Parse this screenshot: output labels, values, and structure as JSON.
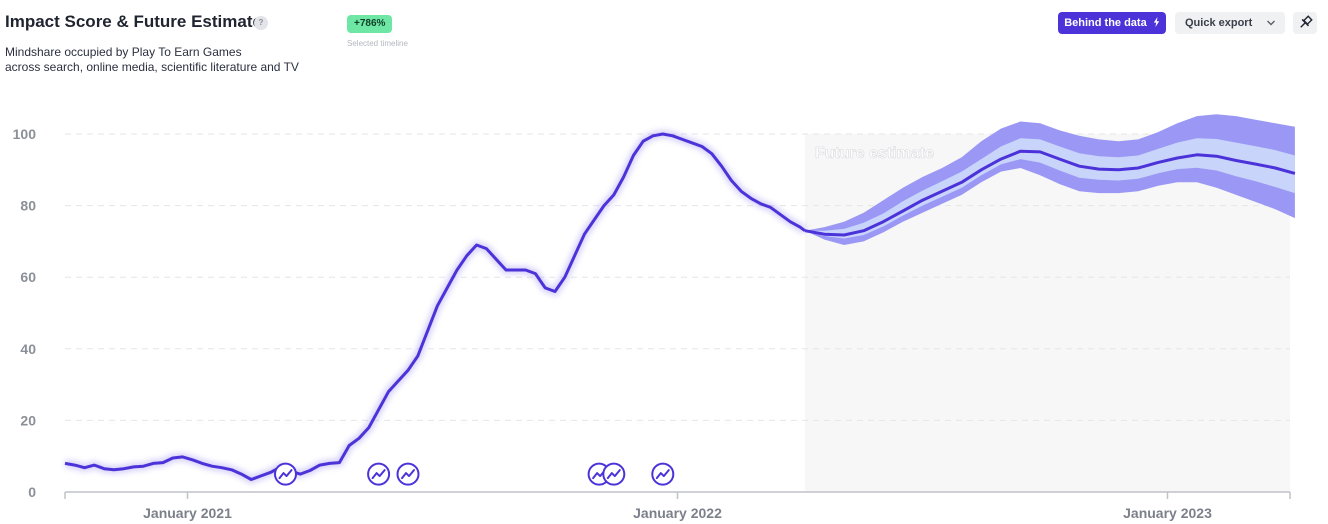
{
  "header": {
    "title": "Impact Score & Future Estimate",
    "help_glyph": "?",
    "subtitle_line1": "Mindshare occupied by Play To Earn Games",
    "subtitle_line2": "across search, online media, scientific literature and TV",
    "change_badge": "+786%",
    "change_caption": "Selected timeline"
  },
  "toolbar": {
    "behind_label": "Behind the data",
    "behind_icon": "bolt-icon",
    "export_label": "Quick export",
    "export_icon": "chevron-down-icon",
    "pin_icon": "pin-icon"
  },
  "colors": {
    "line": "#4b33d9",
    "band_outer": "#9b98f5",
    "band_inner": "#c9d4fb",
    "forecast_bg": "#f7f7f7",
    "grid": "#e6e6e6",
    "badge": "#6ee7a5"
  },
  "chart_data": {
    "type": "line",
    "ylim": [
      0,
      100
    ],
    "yticks": [
      "0",
      "20",
      "40",
      "60",
      "80",
      "100"
    ],
    "x_range": [
      2020.75,
      2023.25
    ],
    "xticks": [
      {
        "label": "January 2021",
        "x": 2021.0
      },
      {
        "label": "January 2022",
        "x": 2022.0
      },
      {
        "label": "January 2023",
        "x": 2023.0
      }
    ],
    "grid": true,
    "forecast_label": "Future estimate",
    "forecast_start": 2022.26,
    "series": [
      {
        "x": [
          2020.75,
          2020.77,
          2020.79,
          2020.81,
          2020.83,
          2020.85,
          2020.87,
          2020.89,
          2020.91,
          2020.93,
          2020.95,
          2020.97,
          2020.99,
          2021.01,
          2021.03,
          2021.05,
          2021.07,
          2021.09,
          2021.11,
          2021.13,
          2021.15,
          2021.17,
          2021.19,
          2021.21,
          2021.23,
          2021.25,
          2021.27,
          2021.29,
          2021.31,
          2021.33,
          2021.35,
          2021.37,
          2021.39,
          2021.41,
          2021.43,
          2021.45,
          2021.47,
          2021.49,
          2021.51,
          2021.53,
          2021.55,
          2021.57,
          2021.59,
          2021.61,
          2021.63,
          2021.65,
          2021.67,
          2021.69,
          2021.71,
          2021.73,
          2021.75,
          2021.77,
          2021.79,
          2021.81,
          2021.83,
          2021.85,
          2021.87,
          2021.89,
          2021.91,
          2021.93,
          2021.95,
          2021.97,
          2021.99,
          2022.01,
          2022.03,
          2022.05,
          2022.07,
          2022.09,
          2022.11,
          2022.13,
          2022.15,
          2022.17,
          2022.19,
          2022.21,
          2022.23,
          2022.25,
          2022.26
        ],
        "values": [
          8,
          7.5,
          6.8,
          7.5,
          6.5,
          6.2,
          6.5,
          7,
          7.2,
          8,
          8.2,
          9.5,
          9.8,
          9,
          8,
          7.2,
          6.8,
          6.2,
          5,
          3.5,
          4.5,
          5.5,
          7,
          5.8,
          5,
          6,
          7.5,
          8,
          8.2,
          13,
          15,
          18,
          23,
          28,
          31,
          34,
          38,
          45,
          52,
          57,
          62,
          66,
          69,
          68,
          65,
          62,
          62,
          62,
          61,
          57,
          56,
          60,
          66,
          72,
          76,
          80,
          83,
          88,
          94,
          98,
          99.5,
          100,
          99.5,
          98.5,
          97.5,
          96.5,
          94.5,
          91,
          87,
          84,
          82,
          80.5,
          79.5,
          77.5,
          75.5,
          74,
          73
        ]
      },
      {
        "x": [
          2022.26,
          2022.3,
          2022.34,
          2022.38,
          2022.42,
          2022.46,
          2022.5,
          2022.54,
          2022.58,
          2022.62,
          2022.66,
          2022.7,
          2022.74,
          2022.78,
          2022.82,
          2022.86,
          2022.9,
          2022.94,
          2022.98,
          2023.02,
          2023.06,
          2023.1,
          2023.14,
          2023.18,
          2023.22,
          2023.26
        ],
        "values": [
          73,
          72,
          71.8,
          73,
          75.5,
          78.5,
          81.5,
          84,
          86.5,
          90,
          93,
          95.2,
          95,
          93,
          91,
          90.2,
          90,
          90.5,
          92,
          93.3,
          94.2,
          93.8,
          92.6,
          91.6,
          90.5,
          89
        ],
        "lower_outer": [
          73,
          70.5,
          69,
          70,
          72.5,
          75.5,
          78,
          80.5,
          83,
          86.5,
          89.5,
          90.5,
          88.5,
          86,
          84,
          83.5,
          83.5,
          84,
          85.5,
          86.5,
          86.5,
          85,
          83,
          81,
          79,
          76.5
        ],
        "upper_outer": [
          73,
          74,
          75.5,
          78,
          81.5,
          85,
          88,
          90.5,
          93.5,
          98,
          101.5,
          103.5,
          103,
          101,
          99.5,
          98.5,
          98,
          98.5,
          100.5,
          103,
          105,
          105.5,
          105,
          104,
          103,
          102
        ],
        "lower_inner": [
          73,
          71.5,
          70.8,
          71.8,
          74.2,
          77.2,
          80,
          82.5,
          85,
          88.5,
          91.5,
          93,
          92,
          89.8,
          87.8,
          87.2,
          87,
          87.5,
          89,
          90.2,
          90.6,
          89.8,
          88.2,
          86.8,
          85.2,
          83.5
        ],
        "upper_inner": [
          73,
          73,
          73.5,
          75.2,
          77.8,
          81.2,
          84.2,
          86.8,
          89.5,
          93,
          96.5,
          98.8,
          98.5,
          96.5,
          94.6,
          93.8,
          93.5,
          94,
          95.8,
          97.6,
          98.8,
          98.6,
          97.6,
          96.6,
          95.5,
          94
        ]
      }
    ],
    "event_markers": [
      {
        "x": 2021.2,
        "y": 5
      },
      {
        "x": 2021.39,
        "y": 5
      },
      {
        "x": 2021.45,
        "y": 5
      },
      {
        "x": 2021.84,
        "y": 5
      },
      {
        "x": 2021.87,
        "y": 5
      },
      {
        "x": 2021.97,
        "y": 5
      }
    ]
  }
}
